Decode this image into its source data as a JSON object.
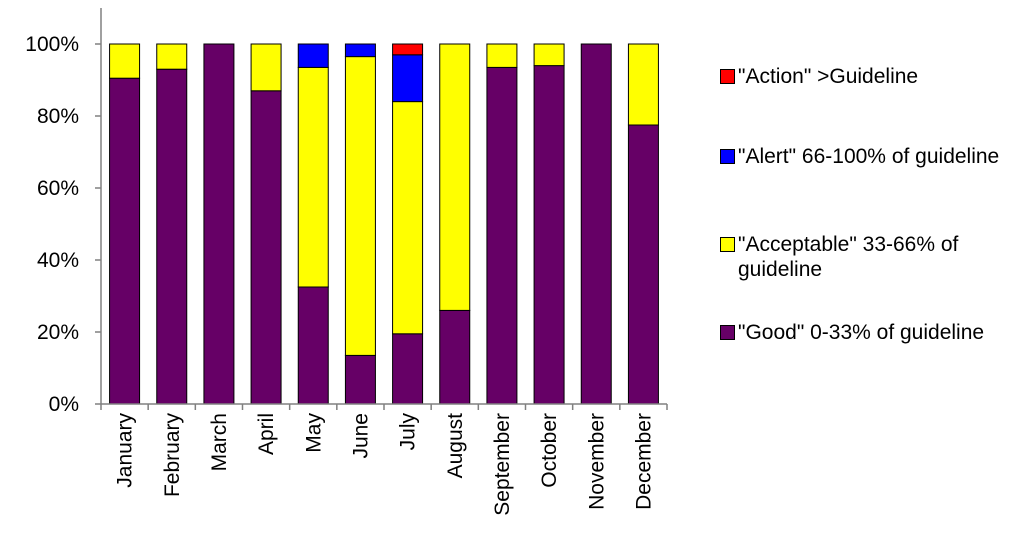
{
  "chart_data": {
    "type": "bar",
    "stacked": true,
    "percent": true,
    "categories": [
      "January",
      "February",
      "March",
      "April",
      "May",
      "June",
      "July",
      "August",
      "September",
      "October",
      "November",
      "December"
    ],
    "series": [
      {
        "name": "\"Good\" 0-33% of guideline",
        "color": "#660066",
        "values": [
          90.5,
          93,
          100,
          87,
          32.5,
          13.5,
          19.5,
          26,
          93.5,
          94,
          100,
          77.5
        ]
      },
      {
        "name": "\"Acceptable\" 33-66% of guideline",
        "color": "#ffff00",
        "values": [
          9.5,
          7,
          0,
          13,
          61,
          83,
          64.5,
          74,
          6.5,
          6,
          0,
          22.5
        ]
      },
      {
        "name": "\"Alert\" 66-100% of guideline",
        "color": "#0000ff",
        "values": [
          0,
          0,
          0,
          0,
          6.5,
          3.5,
          13,
          0,
          0,
          0,
          0,
          0
        ]
      },
      {
        "name": "\"Action\" >Guideline",
        "color": "#ff0000",
        "values": [
          0,
          0,
          0,
          0,
          0,
          0,
          3,
          0,
          0,
          0,
          0,
          0
        ]
      }
    ],
    "yticks": [
      "0%",
      "20%",
      "40%",
      "60%",
      "80%",
      "100%"
    ],
    "ylim": [
      0,
      100
    ],
    "legend_position": "right",
    "grid": false
  },
  "legend": {
    "items": [
      {
        "label": "\"Action\" >Guideline",
        "color": "#ff0000"
      },
      {
        "label": "\"Alert\" 66-100% of guideline",
        "color": "#0000ff"
      },
      {
        "label": "\"Acceptable\" 33-66% of guideline",
        "color": "#ffff00"
      },
      {
        "label": "\"Good\" 0-33% of guideline",
        "color": "#660066"
      }
    ]
  }
}
